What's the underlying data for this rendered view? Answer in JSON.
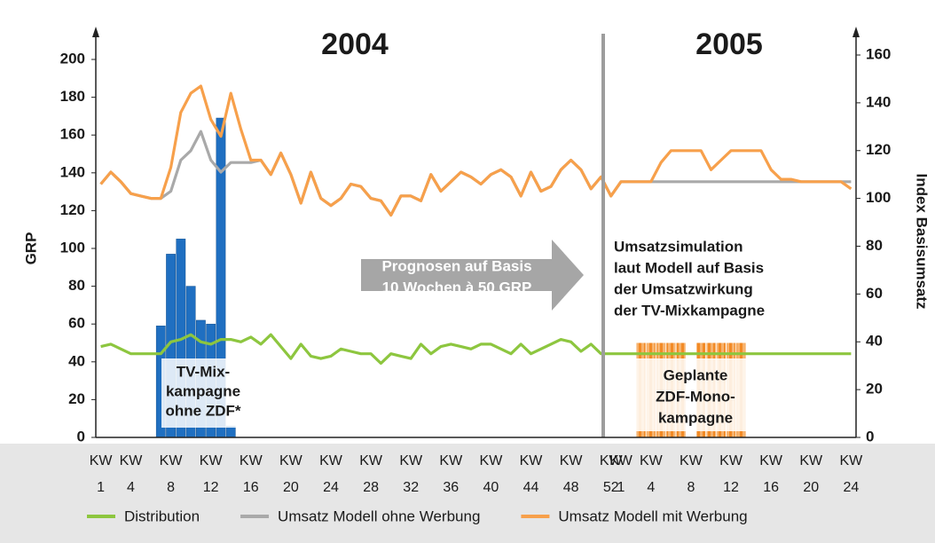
{
  "chart_data": {
    "type": "combo",
    "titles": [
      "2004",
      "2005"
    ],
    "y_label": "GRP",
    "y2_label": "Index Basisumsatz",
    "categories": [
      "KW 1",
      null,
      null,
      "KW 4",
      null,
      null,
      null,
      "KW 8",
      null,
      null,
      null,
      "KW 12",
      null,
      null,
      null,
      "KW 16",
      null,
      null,
      null,
      "KW 20",
      null,
      null,
      null,
      "KW 24",
      null,
      null,
      null,
      "KW 28",
      null,
      null,
      null,
      "KW 32",
      null,
      null,
      null,
      "KW 36",
      null,
      null,
      null,
      "KW 40",
      null,
      null,
      null,
      "KW 44",
      null,
      null,
      null,
      "KW 48",
      null,
      null,
      null,
      "KW 52",
      "KW 1",
      null,
      null,
      "KW 4",
      null,
      null,
      null,
      "KW 8",
      null,
      null,
      null,
      "KW 12",
      null,
      null,
      null,
      "KW 16",
      null,
      null,
      null,
      "KW 20",
      null,
      null,
      null,
      "KW 24"
    ],
    "ylim": [
      0,
      200
    ],
    "yticks": [
      0,
      20,
      40,
      60,
      80,
      100,
      120,
      140,
      160,
      180,
      200
    ],
    "y2lim": [
      0,
      160
    ],
    "y2ticks": [
      0,
      20,
      40,
      60,
      80,
      100,
      120,
      140,
      160
    ],
    "series": [
      {
        "type": "bar",
        "color": "#1f6fc1",
        "values": [
          null,
          null,
          null,
          null,
          null,
          null,
          59,
          97,
          105,
          80,
          62,
          60,
          169,
          6,
          null,
          null,
          null,
          null,
          null,
          null,
          null,
          null,
          null,
          null,
          null,
          null,
          null,
          null,
          null,
          null,
          null,
          null,
          null,
          null,
          null,
          null,
          null,
          null,
          null,
          null,
          null,
          null,
          null,
          null,
          null,
          null,
          null,
          null,
          null,
          null,
          null,
          null,
          null,
          null,
          null,
          null,
          null,
          null,
          null,
          null,
          null,
          null,
          null,
          null,
          null,
          null,
          null,
          null,
          null,
          null,
          null,
          null,
          null,
          null,
          null,
          null
        ]
      },
      {
        "type": "bar",
        "color": "#f5a04a",
        "hatched": true,
        "values": [
          null,
          null,
          null,
          null,
          null,
          null,
          null,
          null,
          null,
          null,
          null,
          null,
          null,
          null,
          null,
          null,
          null,
          null,
          null,
          null,
          null,
          null,
          null,
          null,
          null,
          null,
          null,
          null,
          null,
          null,
          null,
          null,
          null,
          null,
          null,
          null,
          null,
          null,
          null,
          null,
          null,
          null,
          null,
          null,
          null,
          null,
          null,
          null,
          null,
          null,
          null,
          null,
          null,
          null,
          50,
          50,
          50,
          50,
          50,
          null,
          50,
          50,
          50,
          50,
          50,
          null,
          null,
          null,
          null,
          null,
          null,
          null,
          null,
          null,
          null,
          null
        ]
      },
      {
        "type": "line",
        "name": "Distribution",
        "color": "#8dc63f",
        "axis": "y2",
        "values": [
          38,
          39,
          37,
          35,
          35,
          35,
          35,
          40,
          41,
          43,
          40,
          39,
          41,
          41,
          40,
          42,
          39,
          43,
          38,
          33,
          39,
          34,
          33,
          34,
          37,
          36,
          35,
          35,
          31,
          35,
          34,
          33,
          39,
          35,
          38,
          39,
          38,
          37,
          39,
          39,
          37,
          35,
          39,
          35,
          37,
          39,
          41,
          40,
          36,
          39,
          35,
          35,
          35,
          35,
          35,
          35,
          35,
          35,
          35,
          35,
          35,
          35,
          35,
          35,
          35,
          35,
          35,
          35,
          35,
          35,
          35,
          35,
          35,
          35,
          35,
          35
        ]
      },
      {
        "type": "line",
        "name": "Umsatz Modell ohne Werbung",
        "color": "#a9a9a9",
        "axis": "y2",
        "values": [
          106,
          111,
          107,
          102,
          101,
          100,
          100,
          103,
          116,
          120,
          128,
          116,
          111,
          115,
          115,
          115,
          116,
          110,
          119,
          110,
          98,
          111,
          100,
          97,
          100,
          106,
          105,
          100,
          99,
          93,
          101,
          101,
          99,
          110,
          103,
          107,
          111,
          109,
          106,
          110,
          112,
          109,
          101,
          111,
          103,
          105,
          112,
          116,
          112,
          104,
          109,
          101,
          107,
          107,
          107,
          107,
          107,
          107,
          107,
          107,
          107,
          107,
          107,
          107,
          107,
          107,
          107,
          107,
          107,
          107,
          107,
          107,
          107,
          107,
          107,
          107
        ]
      },
      {
        "type": "line",
        "name": "Umsatz Modell mit Werbung",
        "color": "#f7a04b",
        "axis": "y2",
        "values": [
          106,
          111,
          107,
          102,
          101,
          100,
          100,
          113,
          136,
          144,
          147,
          133,
          126,
          144,
          129,
          116,
          116,
          110,
          119,
          110,
          98,
          111,
          100,
          97,
          100,
          106,
          105,
          100,
          99,
          93,
          101,
          101,
          99,
          110,
          103,
          107,
          111,
          109,
          106,
          110,
          112,
          109,
          101,
          111,
          103,
          105,
          112,
          116,
          112,
          104,
          109,
          101,
          107,
          107,
          107,
          107,
          115,
          120,
          120,
          120,
          120,
          112,
          116,
          120,
          120,
          120,
          120,
          112,
          108,
          108,
          107,
          107,
          107,
          107,
          107,
          104
        ]
      }
    ],
    "annotations": {
      "arrow": [
        "Prognosen auf Basis",
        "10 Wochen à 50 GRP"
      ],
      "simulation": [
        "Umsatzsimulation",
        "laut Modell auf Basis",
        "der Umsatzwirkung",
        "der TV-Mixkampagne"
      ],
      "tv_mix": [
        "TV-Mix-",
        "kampagne",
        "ohne ZDF*"
      ],
      "zdf_mono": [
        "Geplante",
        "ZDF-Mono-",
        "kampagne"
      ]
    }
  }
}
